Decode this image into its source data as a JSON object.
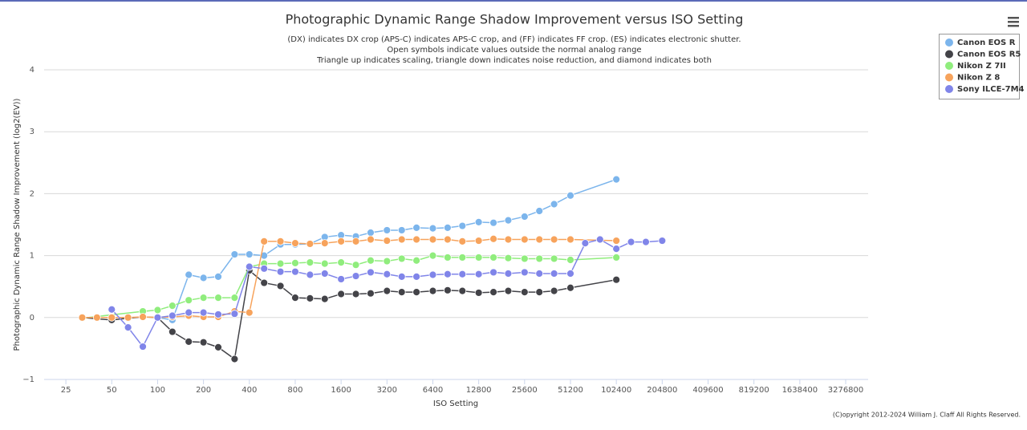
{
  "chart_data": {
    "type": "line",
    "title": "Photographic Dynamic Range Shadow Improvement versus ISO Setting",
    "subtitle": [
      "(DX) indicates DX crop (APS-C) indicates APS-C crop, and (FF) indicates FF crop. (ES) indicates electronic shutter.",
      "Open symbols indicate values outside the normal analog range",
      "Triangle up indicates scaling, triangle down indicates noise reduction, and diamond indicates both"
    ],
    "x_label": "ISO Setting",
    "y_label": "Photographic Dynamic Range Shadow Improvement (log2(EV))",
    "credits": "(C)opyright 2012-2024 William J. Claff All Rights Reserved.",
    "xscale": "log",
    "xlim": [
      18,
      4600000
    ],
    "xticks": [
      25,
      50,
      100,
      200,
      400,
      800,
      1600,
      3200,
      6400,
      12800,
      25600,
      51200,
      102400,
      204800,
      409600,
      819200,
      1638400,
      3276800
    ],
    "ylim": [
      -1,
      4
    ],
    "yticks": [
      {
        "value": -1,
        "label": "−1"
      },
      0,
      1,
      2,
      3,
      4
    ],
    "grid": true,
    "legend": "top-right",
    "series": [
      {
        "name": "Canon EOS R",
        "color": "#7cb5ec",
        "x": [
          100,
          125,
          160,
          200,
          250,
          320,
          400,
          500,
          640,
          800,
          1000,
          1250,
          1600,
          2000,
          2500,
          3200,
          4000,
          5000,
          6400,
          8000,
          10000,
          12800,
          16000,
          20000,
          25600,
          32000,
          40000,
          51200,
          102400
        ],
        "values": [
          0,
          -0.04,
          0.69,
          0.64,
          0.66,
          1.02,
          1.02,
          1.0,
          1.18,
          1.18,
          1.19,
          1.3,
          1.33,
          1.31,
          1.37,
          1.41,
          1.41,
          1.45,
          1.44,
          1.45,
          1.48,
          1.54,
          1.53,
          1.57,
          1.63,
          1.72,
          1.83,
          1.97,
          2.23
        ]
      },
      {
        "name": "Canon EOS R5",
        "color": "#434348",
        "x": [
          32,
          50,
          64,
          80,
          100,
          125,
          160,
          200,
          250,
          320,
          400,
          500,
          640,
          800,
          1000,
          1250,
          1600,
          2000,
          2500,
          3200,
          4000,
          5000,
          6400,
          8000,
          10000,
          12800,
          16000,
          20000,
          25600,
          32000,
          40000,
          51200,
          102400
        ],
        "values": [
          0,
          -0.04,
          -0.01,
          0.01,
          0,
          -0.23,
          -0.39,
          -0.4,
          -0.48,
          -0.67,
          0.76,
          0.56,
          0.51,
          0.32,
          0.31,
          0.3,
          0.38,
          0.38,
          0.39,
          0.43,
          0.41,
          0.41,
          0.43,
          0.44,
          0.43,
          0.4,
          0.41,
          0.43,
          0.41,
          0.41,
          0.43,
          0.48,
          0.61
        ]
      },
      {
        "name": "Nikon Z 7II",
        "color": "#90ed7d",
        "x": [
          32,
          80,
          100,
          125,
          160,
          200,
          250,
          320,
          400,
          500,
          640,
          800,
          1000,
          1250,
          1600,
          2000,
          2500,
          3200,
          4000,
          5000,
          6400,
          8000,
          10000,
          12800,
          16000,
          20000,
          25600,
          32000,
          40000,
          51200,
          102400
        ],
        "values": [
          -0.01,
          0.1,
          0.12,
          0.19,
          0.28,
          0.32,
          0.32,
          0.32,
          0.82,
          0.87,
          0.87,
          0.88,
          0.89,
          0.87,
          0.89,
          0.85,
          0.92,
          0.91,
          0.95,
          0.92,
          1.0,
          0.97,
          0.97,
          0.97,
          0.97,
          0.96,
          0.95,
          0.95,
          0.95,
          0.93,
          0.97
        ]
      },
      {
        "name": "Nikon Z 8",
        "color": "#f7a35c",
        "x": [
          32,
          40,
          50,
          64,
          80,
          100,
          125,
          160,
          200,
          250,
          320,
          400,
          500,
          640,
          800,
          1000,
          1250,
          1600,
          2000,
          2500,
          3200,
          4000,
          5000,
          6400,
          8000,
          10000,
          12800,
          16000,
          20000,
          25600,
          32000,
          40000,
          51200,
          102400
        ],
        "values": [
          0,
          0,
          0,
          0,
          0.01,
          0,
          0.01,
          0.03,
          0.01,
          0.01,
          0.1,
          0.08,
          1.23,
          1.23,
          1.2,
          1.19,
          1.2,
          1.23,
          1.23,
          1.26,
          1.24,
          1.26,
          1.26,
          1.26,
          1.26,
          1.23,
          1.24,
          1.27,
          1.26,
          1.26,
          1.26,
          1.26,
          1.26,
          1.24
        ]
      },
      {
        "name": "Sony ILCE-7M4",
        "color": "#8085e9",
        "x": [
          50,
          64,
          80,
          100,
          125,
          160,
          200,
          250,
          320,
          400,
          500,
          640,
          800,
          1000,
          1250,
          1600,
          2000,
          2500,
          3200,
          4000,
          5000,
          6400,
          8000,
          10000,
          12800,
          16000,
          20000,
          25600,
          32000,
          40000,
          51200,
          64000,
          80000,
          102400,
          128000,
          160000,
          204800
        ],
        "values": [
          0.13,
          -0.16,
          -0.47,
          0,
          0.03,
          0.08,
          0.08,
          0.05,
          0.06,
          0.82,
          0.79,
          0.74,
          0.74,
          0.69,
          0.71,
          0.62,
          0.67,
          0.73,
          0.7,
          0.66,
          0.66,
          0.69,
          0.7,
          0.7,
          0.7,
          0.73,
          0.71,
          0.73,
          0.71,
          0.71,
          0.71,
          1.2,
          1.26,
          1.11,
          1.22,
          1.22,
          1.24
        ]
      }
    ]
  }
}
